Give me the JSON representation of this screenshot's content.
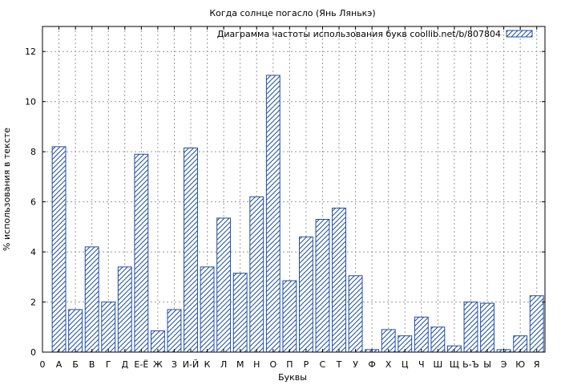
{
  "chart_data": {
    "type": "bar",
    "title": "Когда солнце погасло (Янь Лянькэ)",
    "xlabel": "Буквы",
    "ylabel": "% использования в тексте",
    "legend": "Диаграмма частоты использования букв coollib.net/b/807804",
    "legend_position": "top-right",
    "grid": true,
    "ylim": [
      0,
      13
    ],
    "yticks": [
      0,
      2,
      4,
      6,
      8,
      10,
      12
    ],
    "x_origin_label": "0",
    "categories": [
      "А",
      "Б",
      "В",
      "Г",
      "Д",
      "Е-Ё",
      "Ж",
      "З",
      "И-Й",
      "К",
      "Л",
      "М",
      "Н",
      "О",
      "П",
      "Р",
      "С",
      "Т",
      "У",
      "Ф",
      "Х",
      "Ц",
      "Ч",
      "Ш",
      "Щ",
      "Ь-Ъ",
      "Ы",
      "Э",
      "Ю",
      "Я"
    ],
    "values": [
      8.2,
      1.7,
      4.2,
      2.0,
      3.4,
      7.9,
      0.85,
      1.7,
      8.15,
      3.4,
      5.35,
      3.15,
      6.2,
      11.05,
      2.85,
      4.6,
      5.3,
      5.75,
      3.05,
      0.1,
      0.9,
      0.65,
      1.4,
      1.0,
      0.25,
      2.0,
      1.95,
      0.1,
      0.65,
      2.25
    ],
    "colors": {
      "bar_stroke": "#1f4ea8",
      "hatch": "#1f4ea8",
      "grid": "#999999"
    }
  }
}
